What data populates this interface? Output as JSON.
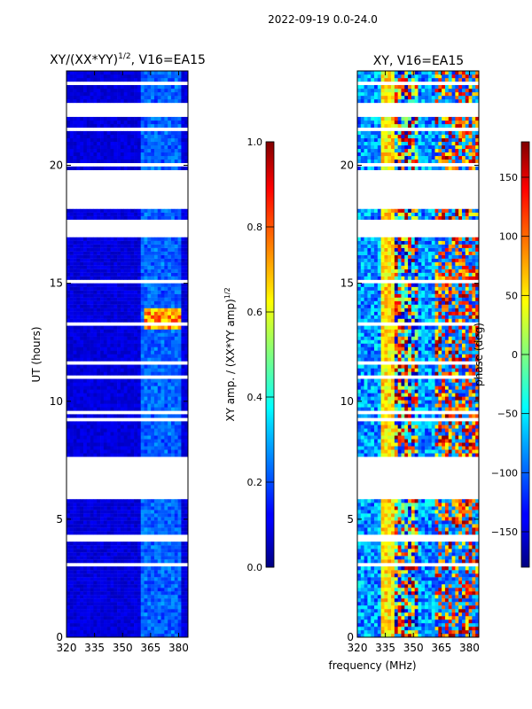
{
  "suptitle": "2022-09-19 0.0-24.0",
  "chart_data": [
    {
      "type": "heatmap",
      "title_main": "XY/(XX*YY)",
      "title_sup": "1/2",
      "title_rest": ", V16=EA15",
      "xlabel": "",
      "ylabel": "UT (hours)",
      "xlim": [
        320,
        385
      ],
      "ylim": [
        0,
        24
      ],
      "xticks": [
        320,
        335,
        350,
        365,
        380
      ],
      "yticks": [
        0,
        5,
        10,
        15,
        20
      ],
      "colorbar": {
        "label_main": "XY amp. / (XX*YY amp)",
        "label_sup": "1/2",
        "range": [
          0.0,
          1.0
        ],
        "ticks": [
          "0.0",
          "0.2",
          "0.4",
          "0.6",
          "0.8",
          "1.0"
        ],
        "colormap": "jet"
      },
      "blank_ut_ranges": [
        [
          5.8,
          7.6
        ],
        [
          17.0,
          17.7
        ],
        [
          18.2,
          19.6
        ],
        [
          22.0,
          22.6
        ],
        [
          4.1,
          4.4
        ]
      ],
      "hot_region": {
        "ut": [
          13.0,
          13.8
        ],
        "freq": [
          362,
          382
        ],
        "value": 0.85
      }
    },
    {
      "type": "heatmap",
      "title": "XY, V16=EA15",
      "xlabel": "frequency (MHz)",
      "ylabel": "",
      "xlim": [
        320,
        385
      ],
      "ylim": [
        0,
        24
      ],
      "xticks": [
        320,
        335,
        350,
        365,
        380
      ],
      "yticks": [
        0,
        5,
        10,
        15,
        20
      ],
      "colorbar": {
        "label": "phase (deg)",
        "range": [
          -180,
          180
        ],
        "ticks": [
          "−150",
          "−100",
          "−50",
          "0",
          "50",
          "100",
          "150"
        ],
        "colormap": "jet"
      }
    }
  ]
}
